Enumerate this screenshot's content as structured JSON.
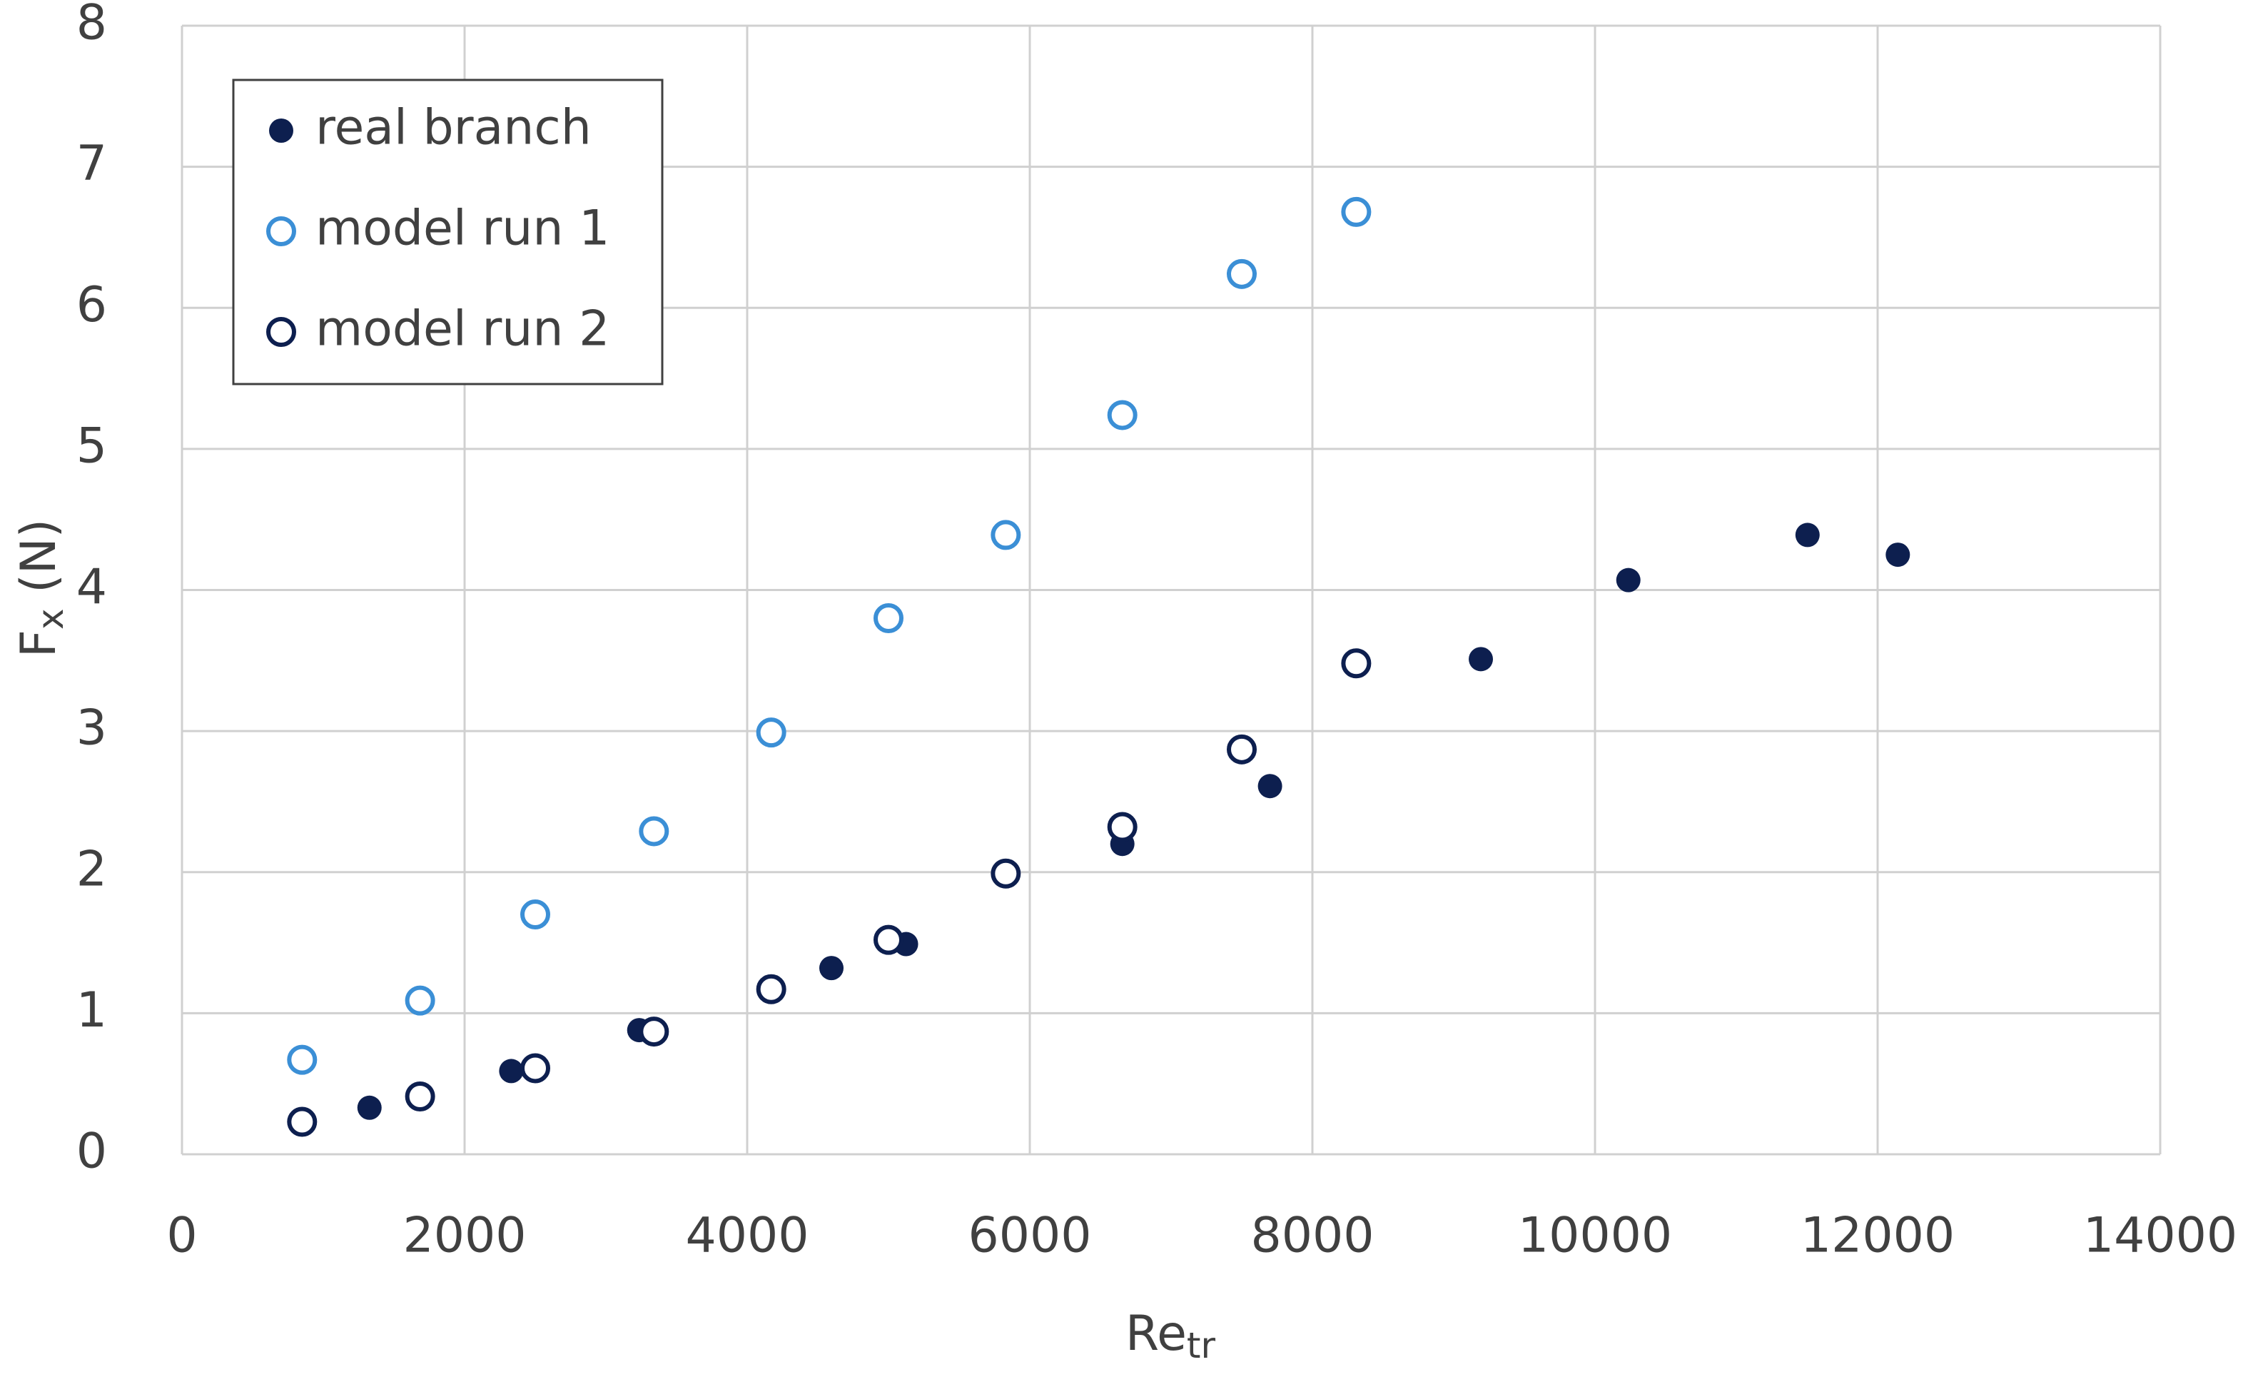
{
  "chart_data": {
    "type": "scatter",
    "xlabel": {
      "base": "Re",
      "sub": "tr"
    },
    "ylabel": {
      "base": "F",
      "sub": "x",
      "rest": " (N)"
    },
    "xlim": [
      0,
      14000
    ],
    "xticks": [
      0,
      2000,
      4000,
      6000,
      8000,
      10000,
      12000,
      14000
    ],
    "ylim": [
      0,
      8
    ],
    "yticks": [
      0,
      1,
      2,
      3,
      4,
      5,
      6,
      7,
      8
    ],
    "grid": true,
    "legend": "upper left",
    "series": [
      {
        "name": "real branch",
        "color": "#0d1f4f",
        "marker": "filled",
        "x": [
          1327,
          2330,
          3236,
          4596,
          5124,
          6655,
          7700,
          9192,
          10236,
          11504,
          12143
        ],
        "values": [
          0.33,
          0.59,
          0.88,
          1.32,
          1.49,
          2.2,
          2.61,
          3.51,
          4.07,
          4.39,
          4.25
        ]
      },
      {
        "name": "model run 1",
        "color": "#3b8fd6",
        "marker": "open",
        "x": [
          850,
          1685,
          2500,
          3340,
          4170,
          5000,
          5830,
          6655,
          7500,
          8310
        ],
        "values": [
          0.67,
          1.09,
          1.7,
          2.29,
          2.99,
          3.8,
          4.39,
          5.24,
          6.24,
          6.68
        ]
      },
      {
        "name": "model run 2",
        "color": "#0d1f4f",
        "marker": "open",
        "x": [
          850,
          1685,
          2500,
          3340,
          4170,
          5000,
          5830,
          6655,
          7500,
          8310
        ],
        "values": [
          0.23,
          0.41,
          0.61,
          0.87,
          1.17,
          1.52,
          1.99,
          2.32,
          2.87,
          3.48
        ]
      }
    ]
  }
}
